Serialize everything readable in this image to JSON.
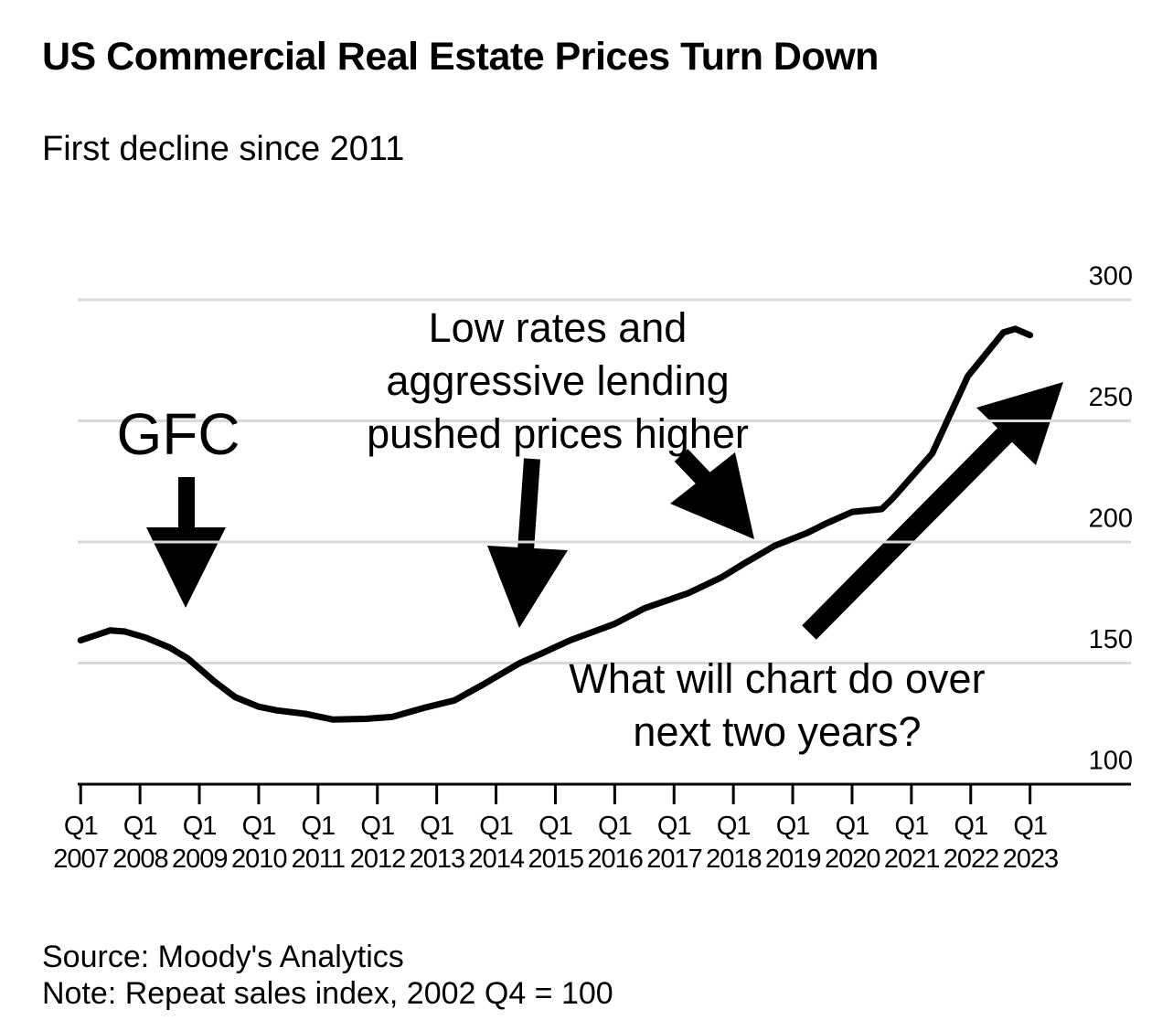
{
  "chart_data": {
    "type": "line",
    "title": "US Commercial Real Estate Prices Turn Down",
    "subtitle": "First decline since 2011",
    "source": "Source: Moody's Analytics",
    "note": "Note: Repeat sales index, 2002 Q4 = 100",
    "annotations": [
      "GFC",
      "Low rates and aggressive lending pushed prices higher",
      "What will chart do over next two years?"
    ],
    "x": [
      2007.0,
      2007.5,
      2007.75,
      2008.1,
      2008.5,
      2008.8,
      2009.25,
      2009.6,
      2010.0,
      2010.3,
      2010.8,
      2011.25,
      2011.8,
      2012.25,
      2012.8,
      2013.3,
      2013.8,
      2014.4,
      2014.75,
      2015.25,
      2016.0,
      2016.5,
      2017.25,
      2017.8,
      2018.2,
      2018.7,
      2019.25,
      2019.55,
      2020.0,
      2020.5,
      2020.7,
      2021.35,
      2021.95,
      2022.35,
      2022.55,
      2022.75,
      2023.0
    ],
    "series": [
      {
        "name": "Repeat sales index",
        "color": "#000000",
        "values": [
          159.4,
          163.5,
          163,
          160.5,
          156.4,
          152,
          142.5,
          136,
          132,
          130.5,
          129,
          126.7,
          127,
          127.8,
          131.6,
          134.6,
          141.4,
          150,
          153.8,
          159.4,
          166.2,
          172.6,
          179,
          185.4,
          191.4,
          198.5,
          203.8,
          207.5,
          212.4,
          213.6,
          218.4,
          236.5,
          268.4,
          280.5,
          286.5,
          288,
          285.4
        ]
      }
    ],
    "xlim": [
      2006.95,
      2024.7
    ],
    "xticks": [
      {
        "value": 2007,
        "label": "Q1 2007"
      },
      {
        "value": 2008,
        "label": "Q1 2008"
      },
      {
        "value": 2009,
        "label": "Q1 2009"
      },
      {
        "value": 2010,
        "label": "Q1 2010"
      },
      {
        "value": 2011,
        "label": "Q1 2011"
      },
      {
        "value": 2012,
        "label": "Q1 2012"
      },
      {
        "value": 2013,
        "label": "Q1 2013"
      },
      {
        "value": 2014,
        "label": "Q1 2014"
      },
      {
        "value": 2015,
        "label": "Q1 2015"
      },
      {
        "value": 2016,
        "label": "Q1 2016"
      },
      {
        "value": 2017,
        "label": "Q1 2017"
      },
      {
        "value": 2018,
        "label": "Q1 2018"
      },
      {
        "value": 2019,
        "label": "Q1 2019"
      },
      {
        "value": 2020,
        "label": "Q1 2020"
      },
      {
        "value": 2021,
        "label": "Q1 2021"
      },
      {
        "value": 2022,
        "label": "Q1 2022"
      },
      {
        "value": 2023,
        "label": "Q1 2023"
      }
    ],
    "ylim": [
      100,
      300
    ],
    "yticks": [
      100,
      150,
      200,
      250,
      300
    ],
    "grid": true
  }
}
